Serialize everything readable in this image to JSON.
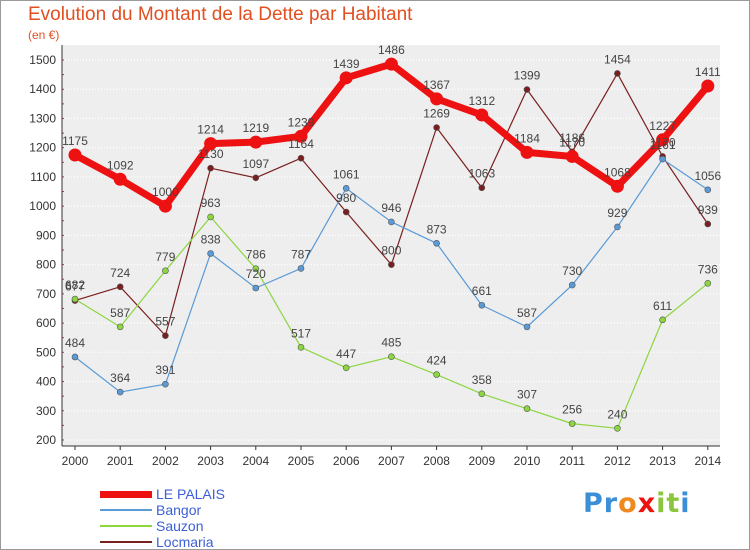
{
  "chart_data": {
    "type": "line",
    "title": "Evolution du Montant de la Dette par Habitant",
    "subtitle": "(en €)",
    "xlabel": "",
    "ylabel": "",
    "x": [
      "2000",
      "2001",
      "2002",
      "2003",
      "2004",
      "2005",
      "2006",
      "2007",
      "2008",
      "2009",
      "2010",
      "2011",
      "2012",
      "2013",
      "2014"
    ],
    "ylim": [
      200,
      1500
    ],
    "yticks": [
      200,
      300,
      400,
      500,
      600,
      700,
      800,
      900,
      1000,
      1100,
      1200,
      1300,
      1400,
      1500
    ],
    "grid": "horizontal-dotted",
    "legend_position": "bottom-left",
    "series": [
      {
        "name": "LE PALAIS",
        "color": "#ee1111",
        "values": [
          1175,
          1092,
          1000,
          1214,
          1219,
          1239,
          1439,
          1486,
          1367,
          1312,
          1184,
          1170,
          1068,
          1227,
          1411
        ]
      },
      {
        "name": "Bangor",
        "color": "#5a9ad6",
        "values": [
          484,
          364,
          391,
          838,
          720,
          787,
          1061,
          946,
          873,
          661,
          587,
          730,
          929,
          1161,
          1056
        ]
      },
      {
        "name": "Sauzon",
        "color": "#8cd640",
        "values": [
          682,
          587,
          779,
          963,
          786,
          517,
          447,
          485,
          424,
          358,
          307,
          256,
          240,
          611,
          736
        ]
      },
      {
        "name": "Locmaria",
        "color": "#7a1f1f",
        "values": [
          677,
          724,
          557,
          1130,
          1097,
          1164,
          980,
          800,
          1269,
          1063,
          1399,
          1186,
          1454,
          1170,
          939
        ]
      }
    ],
    "data_labels": [
      [
        "1175",
        "1092",
        "1000",
        "1214",
        "1219",
        "1239",
        "1439",
        "1486",
        "1367",
        "1312",
        "1184",
        "1170",
        "1068",
        "1227",
        "1411"
      ],
      [
        "484",
        "364",
        "391",
        "838",
        "720",
        "787",
        "1061",
        "946",
        "873",
        "661",
        "587",
        "730",
        "929",
        "1161",
        "1056"
      ],
      [
        "682",
        "587",
        "779",
        "963",
        "786",
        "517",
        "447",
        "485",
        "424",
        "358",
        "307",
        "256",
        "240",
        "611",
        "736"
      ],
      [
        "677",
        "724",
        "557",
        "1130",
        "1097",
        "1164",
        "980",
        "800",
        "1269",
        "1063",
        "1399",
        "1186",
        "1454",
        "1170",
        "939"
      ]
    ]
  },
  "branding": {
    "logo_letters": [
      "P",
      "r",
      "o",
      "x",
      "i",
      "t",
      "i"
    ],
    "logo_colors": [
      "#3a8fd6",
      "#3a8fd6",
      "#ee8a1e",
      "#ee1111",
      "#8cc63f",
      "#8cc63f",
      "#3a8fd6"
    ]
  }
}
